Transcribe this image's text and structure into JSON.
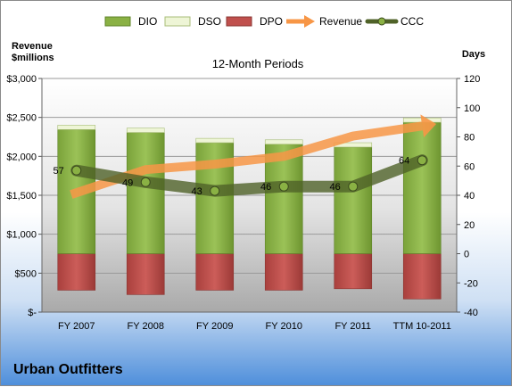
{
  "company": "Urban Outfitters",
  "chart_data": {
    "type": "bar",
    "title": "12-Month Periods",
    "left_axis_label": [
      "Revenue",
      "$millions"
    ],
    "right_axis_label": "Days",
    "categories": [
      "FY 2007",
      "FY 2008",
      "FY 2009",
      "FY 2010",
      "FY 2011",
      "TTM 10-2011"
    ],
    "left_ticks": [
      "$-",
      "$500",
      "$1,000",
      "$1,500",
      "$2,000",
      "$2,500",
      "$3,000"
    ],
    "left_ylim": [
      0,
      3000
    ],
    "right_ticks": [
      "-40",
      "-20",
      "0",
      "20",
      "40",
      "60",
      "80",
      "100",
      "120"
    ],
    "right_ylim": [
      -40,
      120
    ],
    "series": [
      {
        "name": "DIO",
        "kind": "stacked-bar",
        "color": "#8ab144",
        "values": [
          85,
          83,
          76,
          75,
          73,
          90
        ]
      },
      {
        "name": "DSO",
        "kind": "stacked-bar",
        "color": "#e6f0c4",
        "values": [
          3,
          3,
          3,
          3,
          3,
          3
        ]
      },
      {
        "name": "DPO",
        "kind": "stacked-bar-negative",
        "color": "#c0504d",
        "values": [
          -25,
          -28,
          -25,
          -25,
          -24,
          -31
        ]
      },
      {
        "name": "Revenue",
        "kind": "arrow-line",
        "color": "#f79646",
        "values": [
          1510,
          1830,
          1900,
          2000,
          2260,
          2390
        ]
      },
      {
        "name": "CCC",
        "kind": "line",
        "color": "#4f6228",
        "values": [
          57,
          49,
          43,
          46,
          46,
          64
        ]
      }
    ],
    "ccc_labels": [
      "57",
      "49",
      "43",
      "46",
      "46",
      "64"
    ],
    "legend_position": "top"
  }
}
